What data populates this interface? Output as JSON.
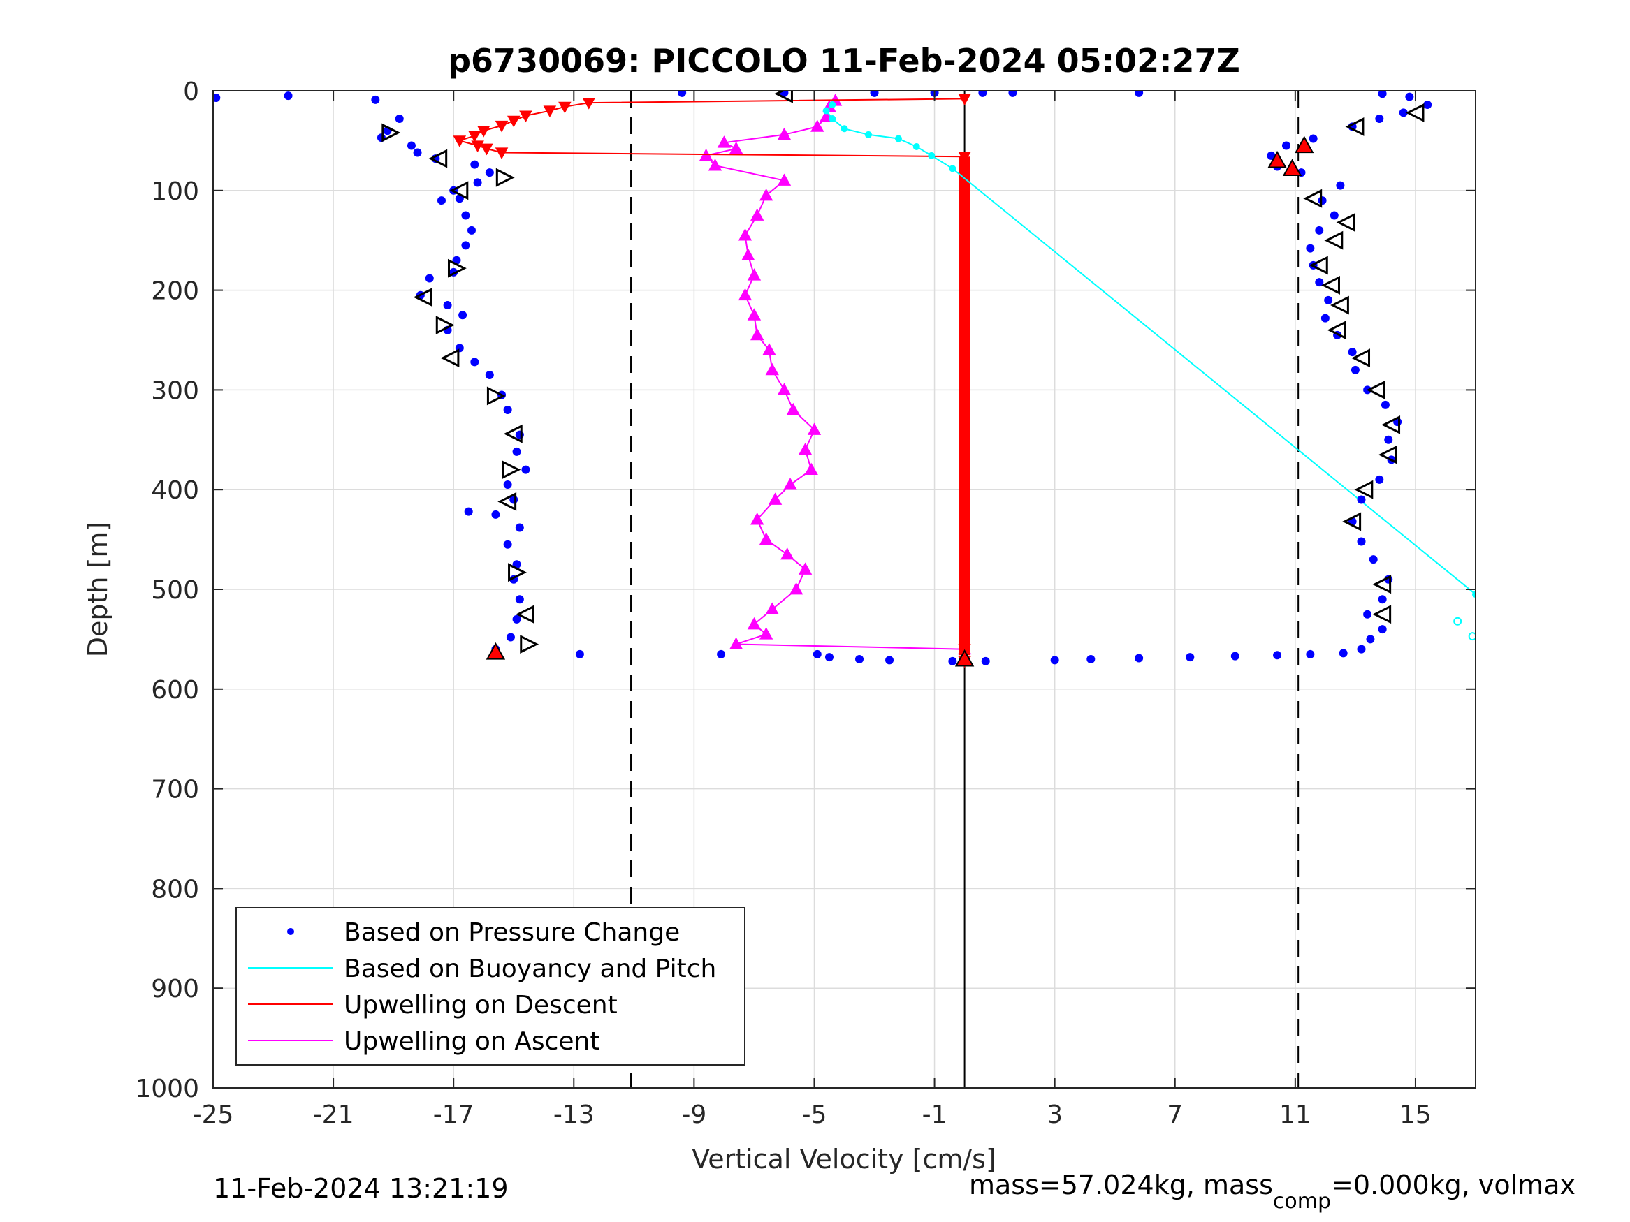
{
  "chart_data": {
    "type": "scatter",
    "title": "p6730069: PICCOLO 11-Feb-2024 05:02:27Z",
    "xlabel": "Vertical Velocity [cm/s]",
    "ylabel": "Depth [m]",
    "xlim": [
      -25,
      17
    ],
    "ylim": [
      0,
      1000
    ],
    "y_reversed": true,
    "grid": true,
    "x_ticks": [
      "-25",
      "-21",
      "-17",
      "-13",
      "-9",
      "-5",
      "-1",
      "3",
      "7",
      "11",
      "15"
    ],
    "y_ticks": [
      "0",
      "100",
      "200",
      "300",
      "400",
      "500",
      "600",
      "700",
      "800",
      "900",
      "1000"
    ],
    "legend_position": "bottom-left",
    "colors": {
      "pressure": "#0000ff",
      "buoyancy": "#00ffff",
      "upwelling_descent": "#ff0000",
      "upwelling_ascent": "#ff00ff"
    },
    "series": [
      {
        "name": "Based on Pressure Change",
        "style": "dots",
        "descent_points": [
          [
            -24.9,
            7
          ],
          [
            -22.5,
            5
          ],
          [
            -19.6,
            9
          ],
          [
            -18.8,
            28
          ],
          [
            -19.2,
            40
          ],
          [
            -19.4,
            47
          ],
          [
            -18.4,
            55
          ],
          [
            -18.2,
            62
          ],
          [
            -17.6,
            68
          ],
          [
            -16.3,
            74
          ],
          [
            -15.8,
            82
          ],
          [
            -16.2,
            92
          ],
          [
            -17.0,
            100
          ],
          [
            -16.8,
            108
          ],
          [
            -17.4,
            110
          ],
          [
            -16.6,
            125
          ],
          [
            -16.4,
            140
          ],
          [
            -16.6,
            155
          ],
          [
            -16.9,
            170
          ],
          [
            -17.0,
            182
          ],
          [
            -17.8,
            188
          ],
          [
            -18.1,
            205
          ],
          [
            -17.2,
            215
          ],
          [
            -16.7,
            225
          ],
          [
            -17.2,
            240
          ],
          [
            -16.8,
            258
          ],
          [
            -16.3,
            272
          ],
          [
            -15.8,
            285
          ],
          [
            -15.4,
            305
          ],
          [
            -15.2,
            320
          ],
          [
            -14.8,
            345
          ],
          [
            -14.9,
            362
          ],
          [
            -14.6,
            380
          ],
          [
            -15.2,
            395
          ],
          [
            -15.0,
            410
          ],
          [
            -16.5,
            422
          ],
          [
            -15.6,
            425
          ],
          [
            -14.8,
            438
          ],
          [
            -15.2,
            455
          ],
          [
            -14.9,
            475
          ],
          [
            -15.0,
            490
          ],
          [
            -14.8,
            510
          ],
          [
            -14.9,
            530
          ],
          [
            -15.1,
            548
          ],
          [
            -15.6,
            560
          ],
          [
            -12.8,
            565
          ],
          [
            -8.1,
            565
          ],
          [
            -4.9,
            565
          ],
          [
            -4.5,
            568
          ],
          [
            -3.5,
            570
          ],
          [
            -2.5,
            571
          ],
          [
            -0.4,
            572
          ]
        ],
        "ascent_points": [
          [
            0.7,
            572
          ],
          [
            3.0,
            571
          ],
          [
            4.2,
            570
          ],
          [
            5.8,
            569
          ],
          [
            7.5,
            568
          ],
          [
            9.0,
            567
          ],
          [
            10.4,
            566
          ],
          [
            11.5,
            565
          ],
          [
            12.6,
            564
          ],
          [
            13.2,
            560
          ],
          [
            13.5,
            550
          ],
          [
            13.9,
            540
          ],
          [
            13.4,
            525
          ],
          [
            13.9,
            510
          ],
          [
            14.1,
            490
          ],
          [
            13.6,
            470
          ],
          [
            13.2,
            452
          ],
          [
            12.9,
            432
          ],
          [
            13.2,
            410
          ],
          [
            13.8,
            390
          ],
          [
            14.2,
            370
          ],
          [
            14.1,
            350
          ],
          [
            14.4,
            332
          ],
          [
            14.0,
            315
          ],
          [
            13.4,
            300
          ],
          [
            13.0,
            280
          ],
          [
            12.9,
            262
          ],
          [
            12.4,
            245
          ],
          [
            12.0,
            228
          ],
          [
            12.1,
            210
          ],
          [
            11.8,
            192
          ],
          [
            11.6,
            175
          ],
          [
            11.5,
            158
          ],
          [
            11.8,
            140
          ],
          [
            12.3,
            125
          ],
          [
            11.9,
            110
          ],
          [
            12.5,
            95
          ],
          [
            11.2,
            82
          ],
          [
            10.4,
            76
          ],
          [
            10.2,
            65
          ],
          [
            10.7,
            55
          ],
          [
            11.6,
            48
          ],
          [
            12.9,
            36
          ],
          [
            13.8,
            28
          ],
          [
            14.6,
            22
          ],
          [
            15.4,
            14
          ],
          [
            14.8,
            6
          ],
          [
            13.9,
            3
          ],
          [
            5.8,
            2
          ],
          [
            1.6,
            2
          ],
          [
            0.6,
            2
          ],
          [
            -1.0,
            2
          ],
          [
            -3.0,
            2
          ],
          [
            -6.0,
            2
          ],
          [
            -9.4,
            2
          ]
        ]
      },
      {
        "name": "Based on Buoyancy and Pitch",
        "style": "line",
        "points": [
          [
            -4.4,
            14
          ],
          [
            -4.6,
            20
          ],
          [
            -4.4,
            28
          ],
          [
            -4.0,
            38
          ],
          [
            -3.2,
            44
          ],
          [
            -2.2,
            48
          ],
          [
            -1.6,
            56
          ],
          [
            -1.1,
            65
          ],
          [
            -0.4,
            78
          ],
          [
            17.0,
            505
          ]
        ],
        "outlier_points": [
          [
            16.4,
            532
          ],
          [
            16.9,
            547
          ]
        ]
      },
      {
        "name": "Upwelling on Descent",
        "style": "line",
        "points": [
          [
            -0.0,
            8
          ],
          [
            -12.5,
            12
          ],
          [
            -13.3,
            16
          ],
          [
            -13.8,
            20
          ],
          [
            -14.6,
            25
          ],
          [
            -15.0,
            30
          ],
          [
            -15.4,
            35
          ],
          [
            -16.0,
            40
          ],
          [
            -16.3,
            45
          ],
          [
            -16.8,
            50
          ],
          [
            -16.2,
            55
          ],
          [
            -15.9,
            58
          ],
          [
            -15.4,
            62
          ],
          [
            -0.0,
            66
          ],
          [
            -0.0,
            560
          ],
          [
            -0.0,
            572
          ]
        ]
      },
      {
        "name": "Upwelling on Ascent",
        "style": "line",
        "points": [
          [
            -0.0,
            560
          ],
          [
            -7.6,
            555
          ],
          [
            -6.6,
            545
          ],
          [
            -7.0,
            535
          ],
          [
            -6.4,
            520
          ],
          [
            -5.6,
            500
          ],
          [
            -5.3,
            480
          ],
          [
            -5.9,
            465
          ],
          [
            -6.6,
            450
          ],
          [
            -6.9,
            430
          ],
          [
            -6.3,
            410
          ],
          [
            -5.8,
            395
          ],
          [
            -5.1,
            380
          ],
          [
            -5.3,
            360
          ],
          [
            -5.0,
            340
          ],
          [
            -5.7,
            320
          ],
          [
            -6.0,
            300
          ],
          [
            -6.4,
            280
          ],
          [
            -6.5,
            260
          ],
          [
            -6.9,
            245
          ],
          [
            -7.0,
            225
          ],
          [
            -7.3,
            205
          ],
          [
            -7.0,
            185
          ],
          [
            -7.2,
            165
          ],
          [
            -7.3,
            145
          ],
          [
            -6.9,
            125
          ],
          [
            -6.6,
            105
          ],
          [
            -6.0,
            90
          ],
          [
            -8.3,
            75
          ],
          [
            -8.6,
            65
          ],
          [
            -7.6,
            58
          ],
          [
            -8.0,
            52
          ],
          [
            -6.0,
            44
          ],
          [
            -4.9,
            36
          ],
          [
            -4.6,
            26
          ],
          [
            -4.5,
            16
          ],
          [
            -4.3,
            10
          ]
        ]
      }
    ],
    "dashed_reference_lines_x": [
      -11.1,
      11.1
    ],
    "solid_reference_line_x": 0.0,
    "triangle_markers": [
      [
        -6.0,
        3
      ],
      [
        -19.1,
        42
      ],
      [
        -17.5,
        68
      ],
      [
        -15.3,
        87
      ],
      [
        -16.8,
        100
      ],
      [
        -16.9,
        178
      ],
      [
        -18.0,
        207
      ],
      [
        -17.3,
        235
      ],
      [
        -17.1,
        268
      ],
      [
        -15.6,
        306
      ],
      [
        -15.0,
        344
      ],
      [
        -15.1,
        380
      ],
      [
        -15.2,
        412
      ],
      [
        -14.9,
        483
      ],
      [
        -14.6,
        525
      ],
      [
        -14.5,
        555
      ],
      [
        15.0,
        22
      ],
      [
        13.0,
        36
      ],
      [
        12.7,
        132
      ],
      [
        11.6,
        108
      ],
      [
        12.3,
        150
      ],
      [
        11.8,
        175
      ],
      [
        12.2,
        195
      ],
      [
        12.5,
        215
      ],
      [
        12.4,
        240
      ],
      [
        13.2,
        268
      ],
      [
        13.7,
        300
      ],
      [
        14.2,
        335
      ],
      [
        14.1,
        365
      ],
      [
        13.3,
        400
      ],
      [
        12.9,
        432
      ],
      [
        13.9,
        495
      ],
      [
        13.9,
        525
      ]
    ],
    "red_triangle_markers": [
      [
        10.4,
        70
      ],
      [
        11.3,
        55
      ],
      [
        10.9,
        78
      ],
      [
        -15.6,
        563
      ],
      [
        0.0,
        570
      ]
    ]
  },
  "footer": {
    "timestamp": "11-Feb-2024 13:21:19",
    "mass_prefix": "mass=57.024kg, mass",
    "mass_subscript": "comp",
    "mass_suffix": "=0.000kg, volmax"
  }
}
